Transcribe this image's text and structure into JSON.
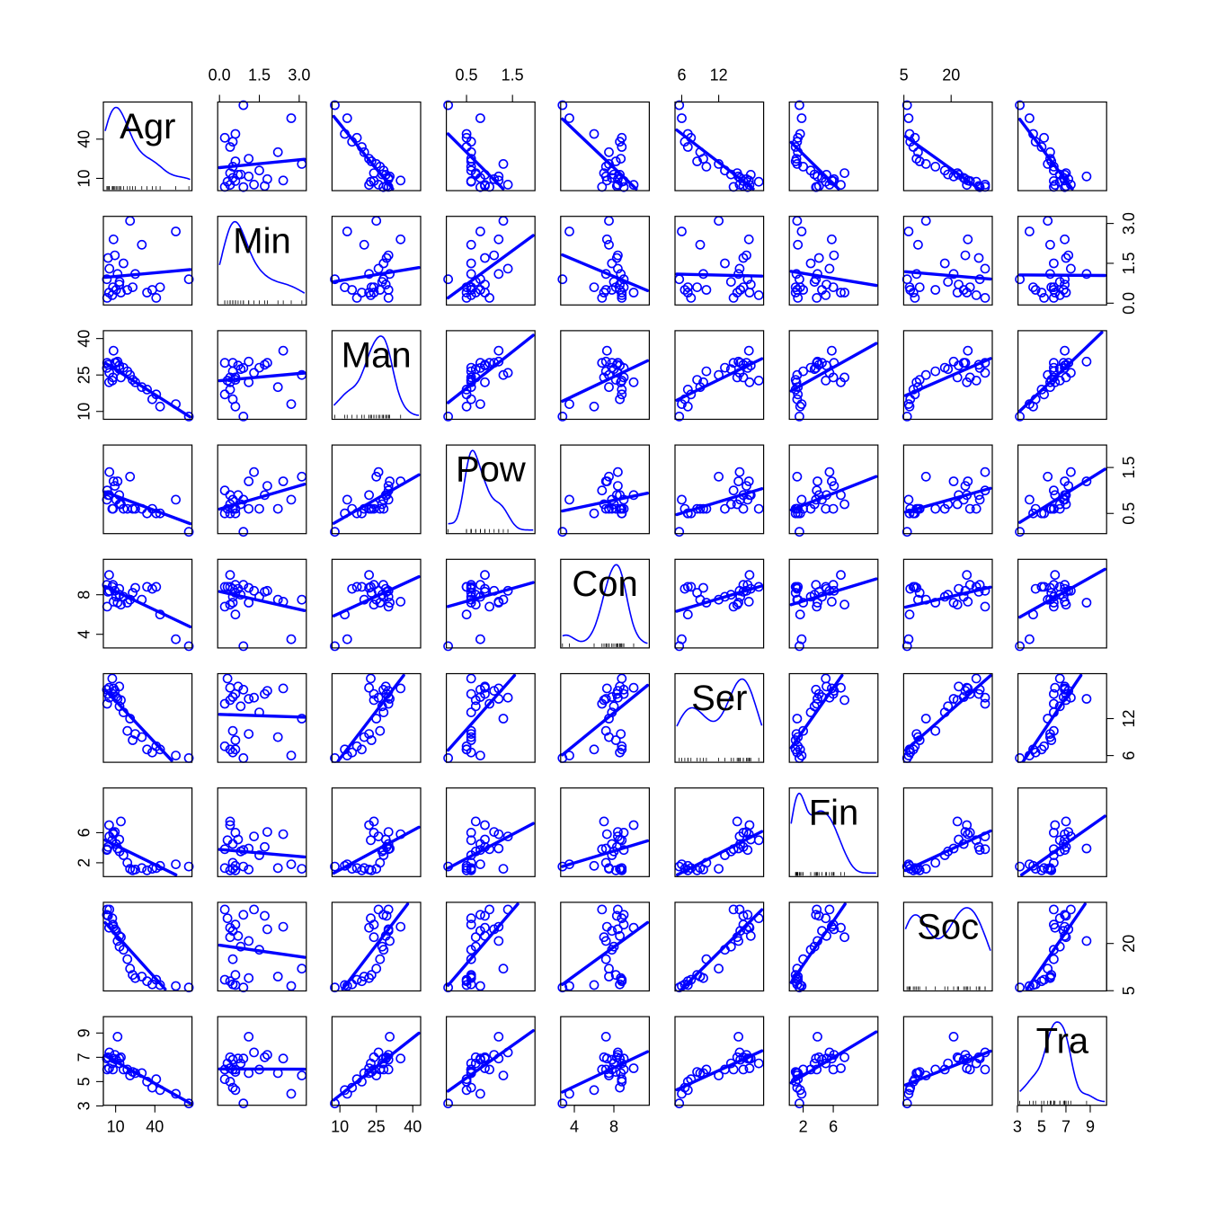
{
  "chart_data": {
    "type": "scatter",
    "matrix": "pairs",
    "color": "#0000ff",
    "variables": [
      {
        "name": "Agr",
        "ticks": [
          "10",
          "40"
        ],
        "tick_values": [
          10,
          40
        ],
        "range": [
          2.0,
          67.0
        ]
      },
      {
        "name": "Min",
        "ticks": [
          "0.0",
          "1.5",
          "3.0"
        ],
        "tick_values": [
          0.0,
          1.5,
          3.0
        ],
        "range": [
          0.0,
          3.2
        ]
      },
      {
        "name": "Man",
        "ticks": [
          "10",
          "25",
          "40"
        ],
        "tick_values": [
          10,
          25,
          40
        ],
        "range": [
          7.5,
          42.5
        ]
      },
      {
        "name": "Pow",
        "ticks": [
          "0.5",
          "1.5"
        ],
        "tick_values": [
          0.5,
          1.5
        ],
        "range": [
          0.1,
          1.95
        ]
      },
      {
        "name": "Con",
        "ticks": [
          "4",
          "8"
        ],
        "tick_values": [
          4,
          8
        ],
        "range": [
          2.8,
          11.4
        ]
      },
      {
        "name": "Ser",
        "ticks": [
          "6",
          "12"
        ],
        "tick_values": [
          6,
          12
        ],
        "range": [
          5.2,
          19.0
        ]
      },
      {
        "name": "Fin",
        "ticks": [
          "2",
          "6"
        ],
        "tick_values": [
          2,
          6
        ],
        "range": [
          0.4,
          11.7
        ]
      },
      {
        "name": "Soc",
        "ticks": [
          "5",
          "20"
        ],
        "tick_values": [
          5,
          20
        ],
        "range": [
          5.5,
          32.5
        ]
      },
      {
        "name": "Tra",
        "ticks": [
          "3",
          "5",
          "7",
          "9"
        ],
        "tick_values": [
          3,
          5,
          7,
          9
        ],
        "range": [
          3.2,
          10.2
        ]
      }
    ],
    "observations": [
      [
        3.3,
        0.9,
        27.9,
        0.8,
        9.0,
        16.7,
        3.7,
        29.1,
        6.9
      ],
      [
        3.5,
        0.2,
        30.0,
        1.0,
        6.8,
        14.4,
        3.8,
        30.8,
        6.0
      ],
      [
        4.2,
        1.7,
        29.2,
        0.9,
        8.3,
        16.0,
        4.1,
        28.8,
        7.0
      ],
      [
        5.2,
        1.3,
        25.9,
        1.4,
        8.4,
        15.4,
        5.5,
        30.8,
        7.4
      ],
      [
        8.4,
        2.4,
        35.0,
        1.2,
        7.3,
        16.9,
        5.8,
        25.3,
        6.9
      ],
      [
        9.4,
        1.8,
        30.0,
        1.1,
        8.4,
        16.5,
        6.1,
        24.5,
        7.2
      ],
      [
        11.5,
        1.1,
        30.5,
        1.2,
        7.2,
        15.2,
        3.9,
        20.8,
        8.7
      ],
      [
        12.8,
        0.7,
        28.9,
        0.9,
        8.6,
        17.2,
        5.1,
        22.4,
        6.9
      ],
      [
        5.0,
        0.4,
        22.0,
        0.9,
        10.0,
        17.0,
        7.0,
        25.0,
        6.1
      ],
      [
        8.0,
        0.6,
        24.0,
        0.6,
        9.0,
        16.0,
        6.0,
        26.0,
        6.0
      ],
      [
        7.4,
        0.3,
        22.7,
        0.6,
        8.8,
        18.5,
        5.0,
        28.0,
        6.5
      ],
      [
        10.4,
        0.5,
        30.0,
        0.8,
        7.8,
        15.5,
        4.5,
        24.0,
        6.8
      ],
      [
        13.0,
        0.8,
        27.4,
        0.7,
        8.0,
        14.0,
        3.5,
        19.0,
        6.5
      ],
      [
        16.0,
        1.5,
        28.0,
        0.6,
        7.8,
        13.0,
        3.0,
        18.0,
        6.0
      ],
      [
        19.0,
        0.5,
        26.5,
        0.6,
        7.2,
        10.0,
        2.0,
        15.0,
        6.0
      ],
      [
        21.0,
        3.1,
        25.0,
        1.3,
        7.5,
        12.0,
        1.2,
        12.0,
        5.5
      ],
      [
        23.0,
        0.6,
        23.0,
        0.6,
        8.2,
        8.5,
        1.0,
        10.0,
        5.8
      ],
      [
        25.0,
        1.1,
        22.0,
        0.6,
        8.7,
        9.5,
        1.1,
        9.0,
        5.7
      ],
      [
        30.0,
        2.2,
        20.0,
        0.6,
        7.5,
        9.0,
        1.3,
        9.5,
        5.7
      ],
      [
        34.0,
        0.4,
        19.0,
        0.5,
        8.8,
        7.0,
        1.0,
        8.0,
        5.0
      ],
      [
        38.0,
        0.5,
        15.0,
        0.6,
        8.6,
        6.5,
        1.2,
        7.0,
        4.5
      ],
      [
        41.0,
        0.2,
        17.0,
        0.5,
        8.8,
        7.5,
        1.3,
        8.5,
        5.2
      ],
      [
        44.0,
        0.6,
        12.0,
        0.5,
        6.0,
        7.0,
        1.6,
        6.8,
        4.3
      ],
      [
        56.0,
        2.7,
        13.0,
        0.8,
        3.5,
        6.0,
        1.8,
        6.5,
        4.0
      ],
      [
        66.0,
        0.9,
        7.9,
        0.1,
        2.8,
        5.6,
        1.5,
        6.0,
        3.2
      ],
      [
        14.0,
        0.4,
        24.0,
        0.7,
        7.0,
        15.0,
        7.5,
        22.0,
        7.0
      ]
    ]
  }
}
